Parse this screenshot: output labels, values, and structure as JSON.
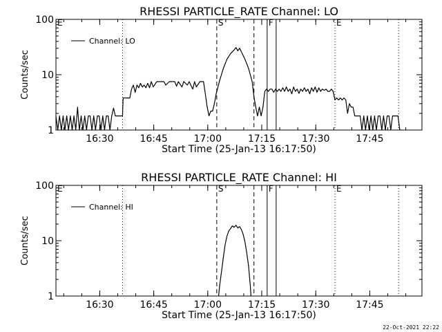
{
  "colors": {
    "background": "#ffffff",
    "foreground": "#000000"
  },
  "footer": {
    "datestamp": "22-Oct-2021 22:22"
  },
  "chart_data": [
    {
      "type": "line",
      "title": "RHESSI PARTICLE_RATE Channel: LO",
      "xlabel": "Start Time (25-Jan-13 16:17:50)",
      "ylabel": "Counts/sec",
      "yscale": "log",
      "ylim": [
        1,
        100
      ],
      "xlim": [
        "16:17:50",
        "17:59:30"
      ],
      "yticks": [
        {
          "v": 1,
          "label": "1"
        },
        {
          "v": 10,
          "label": "10"
        },
        {
          "v": 100,
          "label": "100"
        }
      ],
      "xticks": [
        "16:30",
        "16:45",
        "17:00",
        "17:15",
        "17:30",
        "17:45"
      ],
      "legend": {
        "position": "top-left",
        "label": "Channel: LO"
      },
      "series": [
        {
          "name": "Channel: LO",
          "points": [
            [
              "16:17:50",
              1.8
            ],
            [
              "16:18:20",
              1.0
            ],
            [
              "16:18:50",
              1.8
            ],
            [
              "16:19:20",
              1.0
            ],
            [
              "16:19:50",
              1.8
            ],
            [
              "16:20:20",
              1.0
            ],
            [
              "16:20:50",
              1.8
            ],
            [
              "16:21:20",
              1.0
            ],
            [
              "16:21:50",
              1.8
            ],
            [
              "16:22:20",
              1.0
            ],
            [
              "16:22:50",
              1.8
            ],
            [
              "16:23:20",
              1.0
            ],
            [
              "16:23:50",
              2.6
            ],
            [
              "16:24:20",
              1.0
            ],
            [
              "16:24:50",
              1.8
            ],
            [
              "16:25:20",
              1.0
            ],
            [
              "16:25:50",
              1.8
            ],
            [
              "16:26:20",
              1.0
            ],
            [
              "16:26:50",
              1.8
            ],
            [
              "16:27:20",
              1.8
            ],
            [
              "16:27:50",
              1.0
            ],
            [
              "16:28:20",
              1.8
            ],
            [
              "16:28:50",
              1.0
            ],
            [
              "16:29:20",
              1.8
            ],
            [
              "16:29:50",
              1.8
            ],
            [
              "16:30:20",
              1.0
            ],
            [
              "16:30:50",
              1.8
            ],
            [
              "16:31:20",
              1.0
            ],
            [
              "16:31:50",
              1.8
            ],
            [
              "16:32:20",
              1.8
            ],
            [
              "16:32:50",
              1.0
            ],
            [
              "16:33:20",
              1.8
            ],
            [
              "16:33:50",
              2.5
            ],
            [
              "16:34:20",
              1.8
            ],
            [
              "16:34:50",
              1.8
            ],
            [
              "16:35:20",
              1.8
            ],
            [
              "16:35:50",
              1.8
            ],
            [
              "16:36:20",
              1.8
            ],
            [
              "16:36:30",
              3.8
            ],
            [
              "16:37:20",
              3.8
            ],
            [
              "16:38:20",
              3.8
            ],
            [
              "16:38:50",
              5.5
            ],
            [
              "16:39:20",
              6.5
            ],
            [
              "16:39:50",
              4.8
            ],
            [
              "16:40:20",
              6.5
            ],
            [
              "16:40:50",
              5.8
            ],
            [
              "16:41:20",
              7.0
            ],
            [
              "16:41:50",
              6.0
            ],
            [
              "16:42:20",
              6.5
            ],
            [
              "16:42:50",
              5.8
            ],
            [
              "16:43:20",
              7.0
            ],
            [
              "16:43:50",
              5.8
            ],
            [
              "16:44:20",
              7.5
            ],
            [
              "16:44:50",
              6.0
            ],
            [
              "16:45:50",
              7.5
            ],
            [
              "16:47:50",
              7.5
            ],
            [
              "16:48:20",
              6.5
            ],
            [
              "16:49:20",
              7.5
            ],
            [
              "16:50:50",
              7.5
            ],
            [
              "16:51:20",
              6.2
            ],
            [
              "16:51:50",
              7.5
            ],
            [
              "16:52:50",
              6.0
            ],
            [
              "16:53:20",
              7.5
            ],
            [
              "16:54:20",
              6.5
            ],
            [
              "16:54:50",
              7.5
            ],
            [
              "16:55:50",
              5.5
            ],
            [
              "16:56:20",
              7.5
            ],
            [
              "16:56:50",
              6.0
            ],
            [
              "16:57:50",
              7.5
            ],
            [
              "16:58:50",
              7.5
            ],
            [
              "16:59:20",
              4.5
            ],
            [
              "16:59:50",
              2.6
            ],
            [
              "17:00:20",
              1.8
            ],
            [
              "17:00:50",
              2.2
            ],
            [
              "17:01:20",
              2.2
            ],
            [
              "17:01:50",
              3.0
            ],
            [
              "17:02:20",
              4.5
            ],
            [
              "17:03:20",
              8.0
            ],
            [
              "17:04:20",
              13.0
            ],
            [
              "17:05:20",
              19.0
            ],
            [
              "17:06:20",
              24.0
            ],
            [
              "17:07:20",
              28.0
            ],
            [
              "17:07:50",
              31.0
            ],
            [
              "17:08:20",
              27.0
            ],
            [
              "17:08:50",
              30.0
            ],
            [
              "17:09:20",
              26.0
            ],
            [
              "17:10:20",
              19.0
            ],
            [
              "17:11:20",
              13.0
            ],
            [
              "17:12:20",
              7.5
            ],
            [
              "17:12:50",
              4.0
            ],
            [
              "17:13:20",
              2.6
            ],
            [
              "17:13:50",
              1.8
            ],
            [
              "17:14:20",
              2.6
            ],
            [
              "17:14:50",
              1.8
            ],
            [
              "17:15:20",
              2.6
            ],
            [
              "17:15:50",
              5.0
            ],
            [
              "17:16:20",
              5.5
            ],
            [
              "17:16:50",
              5.0
            ],
            [
              "17:17:20",
              5.5
            ],
            [
              "17:17:50",
              5.5
            ],
            [
              "17:18:20",
              4.8
            ],
            [
              "17:18:50",
              5.5
            ],
            [
              "17:19:20",
              5.0
            ],
            [
              "17:19:50",
              5.5
            ],
            [
              "17:20:20",
              5.0
            ],
            [
              "17:20:50",
              5.8
            ],
            [
              "17:21:20",
              5.0
            ],
            [
              "17:21:50",
              6.0
            ],
            [
              "17:22:20",
              5.0
            ],
            [
              "17:22:50",
              5.5
            ],
            [
              "17:23:20",
              4.5
            ],
            [
              "17:23:50",
              6.0
            ],
            [
              "17:24:20",
              5.0
            ],
            [
              "17:24:50",
              5.5
            ],
            [
              "17:25:20",
              4.6
            ],
            [
              "17:25:50",
              5.5
            ],
            [
              "17:26:20",
              5.0
            ],
            [
              "17:26:50",
              5.8
            ],
            [
              "17:27:20",
              5.0
            ],
            [
              "17:27:50",
              5.5
            ],
            [
              "17:28:20",
              4.5
            ],
            [
              "17:28:50",
              5.8
            ],
            [
              "17:29:20",
              5.0
            ],
            [
              "17:29:50",
              6.0
            ],
            [
              "17:30:20",
              4.8
            ],
            [
              "17:30:50",
              5.8
            ],
            [
              "17:31:20",
              5.0
            ],
            [
              "17:31:50",
              5.5
            ],
            [
              "17:32:20",
              5.2
            ],
            [
              "17:32:50",
              5.5
            ],
            [
              "17:33:20",
              5.0
            ],
            [
              "17:33:50",
              5.0
            ],
            [
              "17:34:20",
              5.5
            ],
            [
              "17:34:50",
              5.0
            ],
            [
              "17:35:20",
              3.5
            ],
            [
              "17:35:50",
              3.8
            ],
            [
              "17:36:20",
              3.5
            ],
            [
              "17:36:50",
              3.8
            ],
            [
              "17:37:20",
              3.5
            ],
            [
              "17:37:50",
              3.8
            ],
            [
              "17:38:20",
              3.5
            ],
            [
              "17:38:50",
              2.0
            ],
            [
              "17:39:20",
              3.0
            ],
            [
              "17:39:50",
              2.6
            ],
            [
              "17:40:20",
              2.6
            ],
            [
              "17:40:50",
              1.8
            ],
            [
              "17:41:20",
              1.8
            ],
            [
              "17:41:50",
              1.8
            ],
            [
              "17:42:20",
              1.8
            ],
            [
              "17:42:50",
              1.0
            ],
            [
              "17:43:20",
              1.8
            ],
            [
              "17:43:50",
              1.0
            ],
            [
              "17:44:20",
              1.8
            ],
            [
              "17:44:50",
              1.0
            ],
            [
              "17:45:20",
              1.8
            ],
            [
              "17:45:50",
              1.0
            ],
            [
              "17:46:20",
              1.8
            ],
            [
              "17:46:50",
              1.0
            ],
            [
              "17:47:20",
              1.8
            ],
            [
              "17:47:50",
              1.8
            ],
            [
              "17:48:20",
              1.0
            ],
            [
              "17:48:50",
              1.8
            ],
            [
              "17:49:20",
              1.0
            ],
            [
              "17:49:50",
              1.8
            ],
            [
              "17:50:20",
              1.8
            ],
            [
              "17:50:50",
              1.0
            ],
            [
              "17:51:20",
              1.8
            ],
            [
              "17:51:50",
              1.8
            ],
            [
              "17:52:50",
              1.8
            ],
            [
              "17:53:20",
              1.0
            ]
          ]
        }
      ],
      "markers": [
        {
          "time": "16:17:50",
          "label": "E",
          "style": "dotted"
        },
        {
          "time": "16:36:20",
          "label": "",
          "style": "dotted"
        },
        {
          "time": "17:02:30",
          "label": "S",
          "style": "dashed"
        },
        {
          "time": "17:12:50",
          "label": "",
          "style": "dashed"
        },
        {
          "time": "17:16:30",
          "label": "F",
          "style": "solid"
        },
        {
          "time": "17:19:00",
          "label": "",
          "style": "solid"
        },
        {
          "time": "17:35:20",
          "label": "E",
          "style": "dotted"
        },
        {
          "time": "17:53:00",
          "label": "",
          "style": "dotted"
        }
      ]
    },
    {
      "type": "line",
      "title": "RHESSI PARTICLE_RATE Channel: HI",
      "xlabel": "Start Time (25-Jan-13 16:17:50)",
      "ylabel": "Counts/sec",
      "yscale": "log",
      "ylim": [
        1,
        100
      ],
      "xlim": [
        "16:17:50",
        "17:59:30"
      ],
      "yticks": [
        {
          "v": 1,
          "label": "1"
        },
        {
          "v": 10,
          "label": "10"
        },
        {
          "v": 100,
          "label": "100"
        }
      ],
      "xticks": [
        "16:30",
        "16:45",
        "17:00",
        "17:15",
        "17:30",
        "17:45"
      ],
      "legend": {
        "position": "top-left",
        "label": "Channel: HI"
      },
      "series": [
        {
          "name": "Channel: HI",
          "points": [
            [
              "17:03:00",
              1.0
            ],
            [
              "17:03:20",
              1.6
            ],
            [
              "17:03:50",
              2.8
            ],
            [
              "17:04:20",
              5.0
            ],
            [
              "17:04:50",
              8.5
            ],
            [
              "17:05:20",
              12.0
            ],
            [
              "17:05:50",
              15.0
            ],
            [
              "17:06:20",
              16.5
            ],
            [
              "17:06:50",
              18.5
            ],
            [
              "17:07:20",
              17.5
            ],
            [
              "17:07:50",
              19.0
            ],
            [
              "17:08:20",
              17.0
            ],
            [
              "17:08:50",
              18.0
            ],
            [
              "17:09:20",
              16.0
            ],
            [
              "17:09:50",
              13.0
            ],
            [
              "17:10:20",
              9.5
            ],
            [
              "17:10:50",
              6.0
            ],
            [
              "17:11:20",
              3.5
            ],
            [
              "17:11:50",
              1.5
            ],
            [
              "17:12:00",
              1.0
            ]
          ]
        }
      ],
      "markers": [
        {
          "time": "16:17:50",
          "label": "E",
          "style": "dotted"
        },
        {
          "time": "16:36:20",
          "label": "",
          "style": "dotted"
        },
        {
          "time": "17:02:30",
          "label": "S",
          "style": "dashed"
        },
        {
          "time": "17:12:50",
          "label": "",
          "style": "dashed"
        },
        {
          "time": "17:16:30",
          "label": "F",
          "style": "solid"
        },
        {
          "time": "17:19:00",
          "label": "",
          "style": "solid"
        },
        {
          "time": "17:35:20",
          "label": "E",
          "style": "dotted"
        },
        {
          "time": "17:53:00",
          "label": "",
          "style": "dotted"
        }
      ]
    }
  ]
}
